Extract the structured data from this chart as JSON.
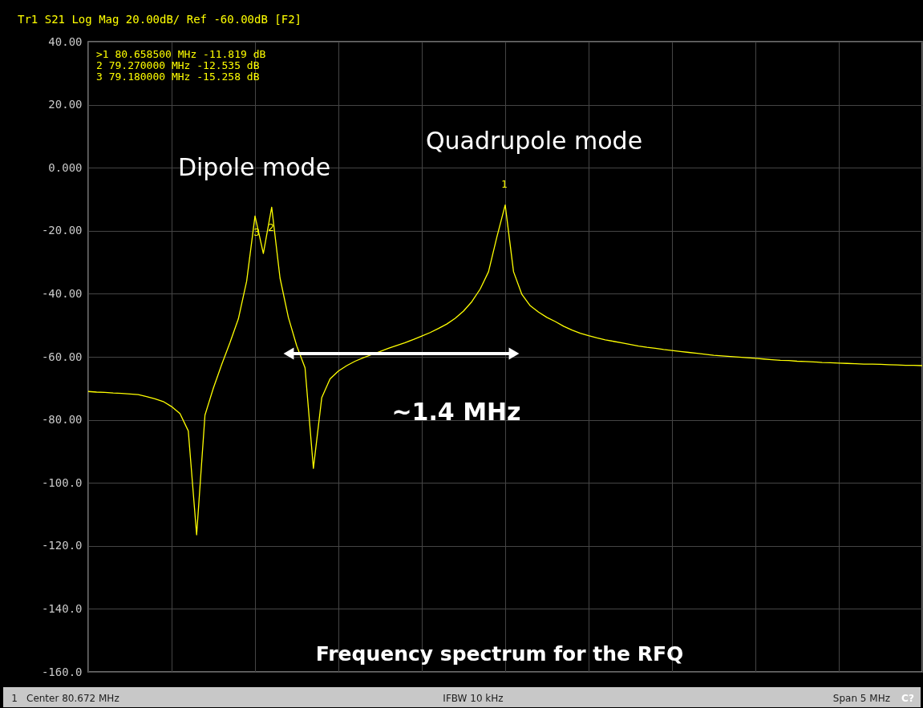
{
  "chart_data": {
    "type": "line",
    "categories": [
      null,
      null,
      null,
      null,
      null,
      null,
      null,
      null,
      null,
      null,
      null,
      null,
      null,
      null,
      null,
      null,
      null,
      null,
      null,
      null,
      null,
      null,
      null,
      null,
      null,
      null,
      null,
      null,
      null,
      null,
      null,
      null,
      null,
      null,
      null,
      null,
      null,
      null,
      null,
      null,
      null,
      null,
      null,
      null,
      null,
      null,
      null,
      null,
      null,
      null,
      null,
      null,
      null,
      null,
      null,
      null,
      null,
      null,
      null,
      null,
      null,
      null,
      null,
      null,
      null,
      null,
      null,
      null,
      null,
      null,
      null,
      null,
      null,
      null,
      null,
      null,
      null,
      null,
      null,
      null,
      null,
      null,
      null,
      null,
      null,
      null,
      null,
      null,
      null,
      null,
      null,
      null,
      null,
      null,
      null,
      null,
      null,
      null,
      null,
      null,
      null
    ],
    "series": [
      {
        "color": "#ffff00",
        "values": [
          -71,
          -71.2,
          -71.3,
          -71.5,
          -71.6,
          -71.8,
          -72,
          -72.6,
          -73.3,
          -74.2,
          -75.8,
          -78,
          -83.5,
          -116.5,
          -78.5,
          -70,
          -62.5,
          -55.5,
          -48,
          -36,
          -15.3,
          -27.2,
          -12.5,
          -35,
          -47.5,
          -56.5,
          -63.5,
          -95.4,
          -73,
          -67,
          -64.5,
          -62.8,
          -61.4,
          -60.3,
          -59.3,
          -58.3,
          -57.3,
          -56.4,
          -55.5,
          -54.5,
          -53.4,
          -52.3,
          -51,
          -49.6,
          -47.8,
          -45.5,
          -42.5,
          -38.5,
          -33,
          -22,
          -11.8,
          -33,
          -40.2,
          -43.8,
          -45.8,
          -47.5,
          -48.8,
          -50.3,
          -51.5,
          -52.5,
          -53.3,
          -54,
          -54.6,
          -55.1,
          -55.6,
          -56.1,
          -56.6,
          -57,
          -57.3,
          -57.7,
          -58,
          -58.3,
          -58.6,
          -58.9,
          -59.2,
          -59.5,
          -59.7,
          -59.9,
          -60.1,
          -60.3,
          -60.5,
          -60.7,
          -60.9,
          -61.1,
          -61.2,
          -61.4,
          -61.5,
          -61.6,
          -61.8,
          -61.9,
          -62,
          -62.1,
          -62.2,
          -62.3,
          -62.3,
          -62.4,
          -62.5,
          -62.6,
          -62.7,
          -62.7,
          -62.8
        ]
      }
    ],
    "ylim": [
      -160,
      40
    ],
    "yticks": [
      {
        "value": 40,
        "label": "40.00"
      },
      {
        "value": 20,
        "label": "20.00"
      },
      {
        "value": 0,
        "label": "0.000"
      },
      {
        "value": -20,
        "label": "-20.00"
      },
      {
        "value": -40,
        "label": "-40.00"
      },
      {
        "value": -60,
        "label": "-60.00"
      },
      {
        "value": -80,
        "label": "-80.00"
      },
      {
        "value": -100,
        "label": "-100.0"
      },
      {
        "value": -120,
        "label": "-120.0"
      },
      {
        "value": -140,
        "label": "-140.0"
      },
      {
        "value": -160,
        "label": "-160.0"
      }
    ],
    "grid": true,
    "tick_labels": "y",
    "annotations": [
      "Tr1 S21 Log Mag 20.00dB/ Ref -60.00dB [F2]",
      ">1  80.658500 MHz -11.819 dB",
      " 2  79.270000 MHz -12.535 dB",
      " 3  79.180000 MHz -15.258 dB",
      "Dipole mode",
      "Quadrupole mode",
      "~1.4 MHz",
      "Frequency spectrum for the RFQ",
      "1",
      "Center 80.672 MHz",
      "IFBW 10 kHz",
      "Span 5 MHz",
      "C?",
      "1",
      "2",
      "3"
    ]
  }
}
